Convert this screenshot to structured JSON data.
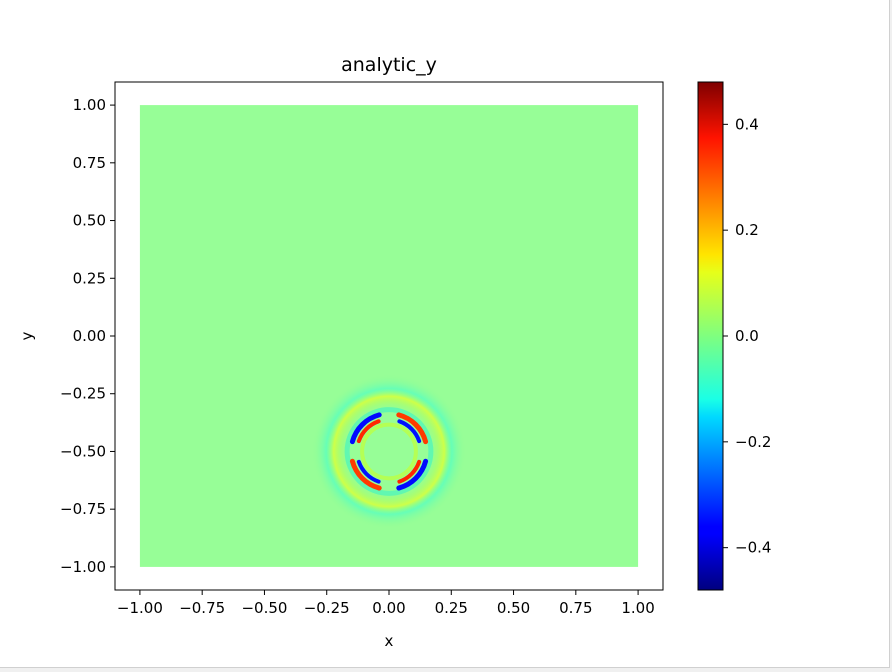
{
  "chart_data": {
    "type": "heatmap",
    "title": "analytic_y",
    "xlabel": "x",
    "ylabel": "y",
    "xlim": [
      -1.1,
      1.1
    ],
    "ylim": [
      -1.1,
      1.1
    ],
    "data_extent": {
      "x": [
        -1.0,
        1.0
      ],
      "y": [
        -1.0,
        1.0
      ]
    },
    "background_value": 0.0,
    "feature": {
      "description_of_pattern": "localized ring of alternating positive/negative values",
      "center": [
        0.0,
        -0.5
      ],
      "ring_radius": 0.14,
      "peak_positive": 0.45,
      "peak_negative": -0.45
    },
    "xticks": [
      -1.0,
      -0.75,
      -0.5,
      -0.25,
      0.0,
      0.25,
      0.5,
      0.75,
      1.0
    ],
    "xtick_labels": [
      "−1.00",
      "−0.75",
      "−0.50",
      "−0.25",
      "0.00",
      "0.25",
      "0.50",
      "0.75",
      "1.00"
    ],
    "yticks": [
      1.0,
      0.75,
      0.5,
      0.25,
      0.0,
      -0.25,
      -0.5,
      -0.75,
      -1.0
    ],
    "ytick_labels": [
      "1.00",
      "0.75",
      "0.50",
      "0.25",
      "0.00",
      "−0.25",
      "−0.50",
      "−0.75",
      "−1.00"
    ],
    "colorbar": {
      "colormap": "jet",
      "range": [
        -0.48,
        0.48
      ],
      "ticks": [
        0.4,
        0.2,
        0.0,
        -0.2,
        -0.4
      ],
      "tick_labels": [
        "0.4",
        "0.2",
        "0.0",
        "−0.2",
        "−0.4"
      ]
    },
    "grid": false
  }
}
